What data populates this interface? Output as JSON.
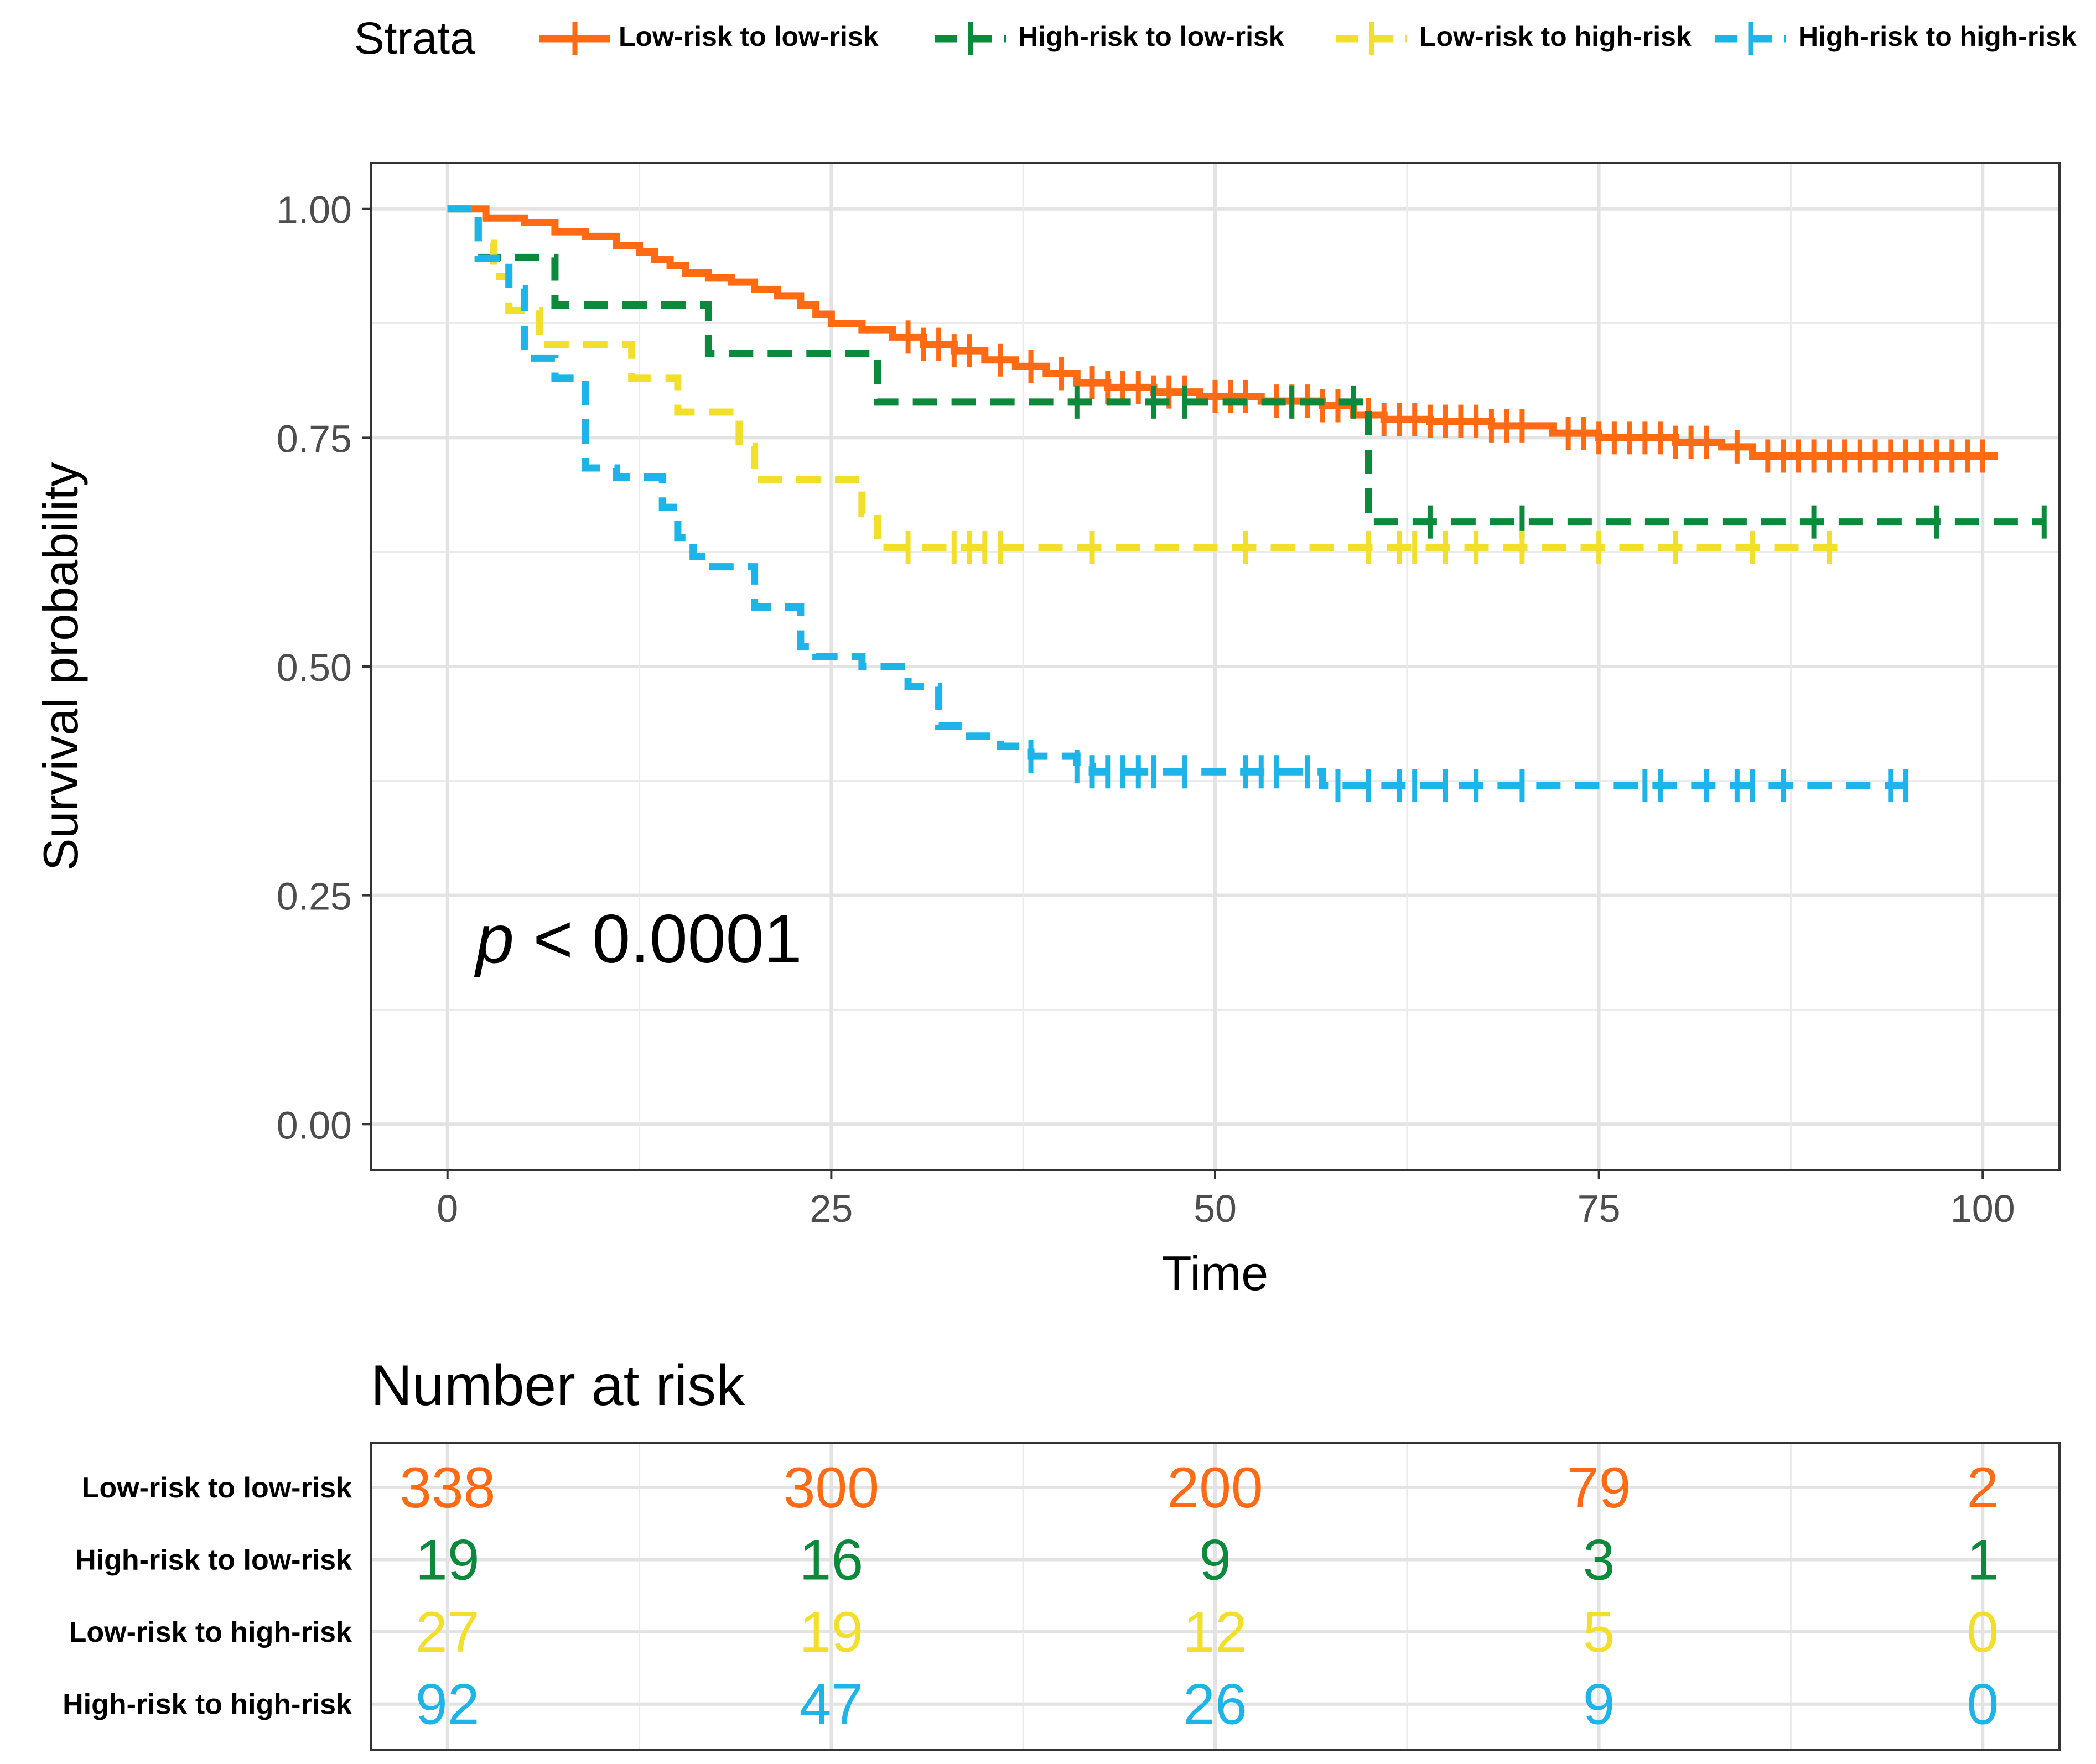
{
  "chart_data": {
    "type": "line",
    "subtype": "kaplan-meier",
    "legend": {
      "title": "Strata",
      "placement": "top",
      "entries": [
        "Low-risk to low-risk",
        "High-risk to low-risk",
        "Low-risk to high-risk",
        "High-risk to high-risk"
      ]
    },
    "xlabel": "Time",
    "ylabel": "Survival probability",
    "xlim": [
      -5,
      105
    ],
    "ylim": [
      -0.05,
      1.05
    ],
    "x_ticks": [
      0,
      25,
      50,
      75,
      100
    ],
    "x_tick_labels": [
      "0",
      "25",
      "50",
      "75",
      "100"
    ],
    "y_ticks": [
      0,
      0.25,
      0.5,
      0.75,
      1.0
    ],
    "y_tick_labels": [
      "0.00",
      "0.25",
      "0.50",
      "0.75",
      "1.00"
    ],
    "grid": true,
    "annotation": {
      "prefix": "p",
      "text": " < 0.0001"
    },
    "series": [
      {
        "name": "Low-risk to low-risk",
        "color": "#FF6A13",
        "dash": "solid",
        "steps": [
          [
            0,
            1.0
          ],
          [
            2.5,
            0.99
          ],
          [
            5,
            0.985
          ],
          [
            7,
            0.975
          ],
          [
            9,
            0.97
          ],
          [
            11,
            0.96
          ],
          [
            12.5,
            0.953
          ],
          [
            13.5,
            0.945
          ],
          [
            14.5,
            0.938
          ],
          [
            15.5,
            0.93
          ],
          [
            17,
            0.925
          ],
          [
            18.5,
            0.92
          ],
          [
            20,
            0.912
          ],
          [
            21.5,
            0.905
          ],
          [
            23,
            0.895
          ],
          [
            24,
            0.885
          ],
          [
            25,
            0.875
          ],
          [
            27,
            0.868
          ],
          [
            29,
            0.86
          ],
          [
            31,
            0.852
          ],
          [
            33,
            0.845
          ],
          [
            35,
            0.835
          ],
          [
            37,
            0.828
          ],
          [
            39,
            0.82
          ],
          [
            41,
            0.81
          ],
          [
            43,
            0.805
          ],
          [
            46,
            0.8
          ],
          [
            49,
            0.795
          ],
          [
            53,
            0.79
          ],
          [
            57,
            0.785
          ],
          [
            59,
            0.775
          ],
          [
            61,
            0.77
          ],
          [
            64,
            0.768
          ],
          [
            68,
            0.763
          ],
          [
            72,
            0.755
          ],
          [
            75,
            0.75
          ],
          [
            80,
            0.745
          ],
          [
            83,
            0.74
          ],
          [
            85,
            0.73
          ],
          [
            101,
            0.73
          ]
        ],
        "censors": [
          30,
          31,
          32,
          33,
          34,
          36,
          38,
          40,
          42,
          43,
          44,
          45,
          46,
          47,
          48,
          50,
          51,
          52,
          54,
          55,
          56,
          57,
          58,
          60,
          61,
          62,
          63,
          64,
          65,
          66,
          67,
          68,
          69,
          70,
          73,
          74,
          75,
          76,
          77,
          78,
          79,
          80,
          81,
          82,
          84,
          86,
          87,
          88,
          89,
          90,
          91,
          92,
          93,
          94,
          95,
          96,
          97,
          98,
          99,
          100
        ]
      },
      {
        "name": "High-risk to low-risk",
        "color": "#0A8A3A",
        "dash": "dashed",
        "steps": [
          [
            0,
            1.0
          ],
          [
            2,
            0.947
          ],
          [
            7,
            0.895
          ],
          [
            17,
            0.842
          ],
          [
            28,
            0.789
          ],
          [
            60,
            0.658
          ],
          [
            104,
            0.658
          ]
        ],
        "censors": [
          41,
          46,
          48,
          55,
          59,
          64,
          70,
          89,
          97,
          104
        ]
      },
      {
        "name": "Low-risk to high-risk",
        "color": "#F2DF2C",
        "dash": "dashed",
        "steps": [
          [
            0,
            1.0
          ],
          [
            2,
            0.963
          ],
          [
            3,
            0.926
          ],
          [
            4,
            0.889
          ],
          [
            6,
            0.852
          ],
          [
            12,
            0.815
          ],
          [
            15,
            0.778
          ],
          [
            19,
            0.741
          ],
          [
            20,
            0.704
          ],
          [
            27,
            0.667
          ],
          [
            28,
            0.63
          ],
          [
            91,
            0.63
          ]
        ],
        "censors": [
          30,
          33,
          34,
          35,
          36,
          42,
          52,
          60,
          62,
          63,
          65,
          67,
          70,
          75,
          80,
          85,
          90
        ]
      },
      {
        "name": "High-risk to high-risk",
        "color": "#1DB4E9",
        "dash": "dashed",
        "steps": [
          [
            0,
            1.0
          ],
          [
            2,
            0.946
          ],
          [
            4,
            0.913
          ],
          [
            5,
            0.837
          ],
          [
            7,
            0.815
          ],
          [
            9,
            0.717
          ],
          [
            11,
            0.707
          ],
          [
            14,
            0.674
          ],
          [
            15,
            0.641
          ],
          [
            16,
            0.62
          ],
          [
            17,
            0.609
          ],
          [
            20,
            0.565
          ],
          [
            23,
            0.522
          ],
          [
            24,
            0.511
          ],
          [
            27,
            0.5
          ],
          [
            30,
            0.478
          ],
          [
            32,
            0.435
          ],
          [
            34,
            0.424
          ],
          [
            36,
            0.413
          ],
          [
            38,
            0.402
          ],
          [
            41,
            0.391
          ],
          [
            42,
            0.385
          ],
          [
            57,
            0.37
          ],
          [
            95,
            0.37
          ]
        ],
        "censors": [
          38,
          41,
          42,
          43,
          44,
          45,
          46,
          48,
          52,
          53,
          54,
          56,
          58,
          60,
          62,
          63,
          65,
          67,
          70,
          78,
          79,
          82,
          84,
          85,
          87,
          94,
          95
        ]
      }
    ],
    "risk_table": {
      "title": "Number at risk",
      "times": [
        0,
        25,
        50,
        75,
        100
      ],
      "rows": [
        {
          "label": "Low-risk to low-risk",
          "values": [
            "338",
            "300",
            "200",
            "79",
            "2"
          ]
        },
        {
          "label": "High-risk to low-risk",
          "values": [
            "19",
            "16",
            "9",
            "3",
            "1"
          ]
        },
        {
          "label": "Low-risk to high-risk",
          "values": [
            "27",
            "19",
            "12",
            "5",
            "0"
          ]
        },
        {
          "label": "High-risk to high-risk",
          "values": [
            "92",
            "47",
            "26",
            "9",
            "0"
          ]
        }
      ]
    }
  }
}
